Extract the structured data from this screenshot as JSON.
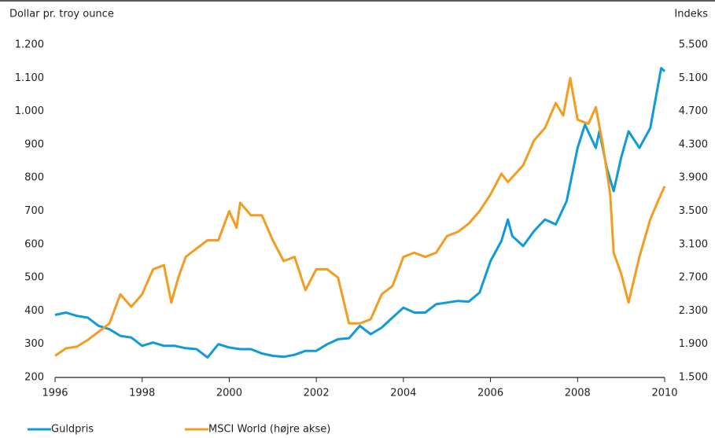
{
  "chart_data": {
    "type": "line",
    "ylabel": "Dollar pr. troy ounce",
    "y2label": "Indeks",
    "xlim": [
      1996,
      2010
    ],
    "xticks": [
      1996,
      1998,
      2000,
      2002,
      2004,
      2006,
      2008,
      2010
    ],
    "ylim": [
      200,
      1200
    ],
    "yticks": [
      200,
      300,
      400,
      500,
      600,
      700,
      800,
      900,
      {
        "value": 1000,
        "label": "1.000"
      },
      {
        "value": 1100,
        "label": "1.100"
      },
      {
        "value": 1200,
        "label": "1.200"
      }
    ],
    "y2lim": [
      1500,
      5500
    ],
    "y2ticks": [
      {
        "value": 1500,
        "label": "1.500"
      },
      {
        "value": 1900,
        "label": "1.900"
      },
      {
        "value": 2300,
        "label": "2.300"
      },
      {
        "value": 2700,
        "label": "2.700"
      },
      {
        "value": 3100,
        "label": "3.100"
      },
      {
        "value": 3500,
        "label": "3.500"
      },
      {
        "value": 3900,
        "label": "3.900"
      },
      {
        "value": 4300,
        "label": "4.300"
      },
      {
        "value": 4700,
        "label": "4.700"
      },
      {
        "value": 5100,
        "label": "5.100"
      },
      {
        "value": 5500,
        "label": "5.500"
      }
    ],
    "series": [
      {
        "name": "Guldpris",
        "color": "#0f9bd7",
        "x": [
          1996.0,
          1996.25,
          1996.5,
          1996.75,
          1997.0,
          1997.25,
          1997.5,
          1997.75,
          1998.0,
          1998.25,
          1998.5,
          1998.75,
          1999.0,
          1999.25,
          1999.5,
          1999.75,
          2000.0,
          2000.25,
          2000.5,
          2000.75,
          2001.0,
          2001.25,
          2001.5,
          2001.75,
          2002.0,
          2002.25,
          2002.5,
          2002.75,
          2003.0,
          2003.25,
          2003.5,
          2003.75,
          2004.0,
          2004.25,
          2004.5,
          2004.75,
          2005.0,
          2005.25,
          2005.5,
          2005.75,
          2006.0,
          2006.25,
          2006.4,
          2006.5,
          2006.75,
          2007.0,
          2007.25,
          2007.5,
          2007.75,
          2008.0,
          2008.17,
          2008.42,
          2008.5,
          2008.67,
          2008.83,
          2009.0,
          2009.17,
          2009.42,
          2009.67,
          2009.92,
          2010.0
        ],
        "values": [
          388,
          395,
          385,
          380,
          355,
          345,
          325,
          320,
          295,
          305,
          295,
          295,
          288,
          285,
          260,
          300,
          290,
          285,
          285,
          272,
          265,
          262,
          268,
          280,
          280,
          300,
          315,
          318,
          355,
          330,
          350,
          380,
          410,
          395,
          395,
          420,
          425,
          430,
          428,
          455,
          550,
          610,
          675,
          625,
          595,
          640,
          675,
          660,
          730,
          890,
          960,
          890,
          940,
          830,
          760,
          860,
          940,
          890,
          950,
          1130,
          1120
        ]
      },
      {
        "name": "MSCI World (højre akse)",
        "color": "#f39c1f",
        "axis": "y2",
        "x": [
          1996.0,
          1996.25,
          1996.5,
          1996.75,
          1997.0,
          1997.25,
          1997.5,
          1997.75,
          1998.0,
          1998.25,
          1998.5,
          1998.67,
          1998.83,
          1999.0,
          1999.25,
          1999.5,
          1999.75,
          2000.0,
          2000.17,
          2000.25,
          2000.5,
          2000.75,
          2001.0,
          2001.25,
          2001.5,
          2001.75,
          2002.0,
          2002.25,
          2002.5,
          2002.75,
          2003.0,
          2003.25,
          2003.5,
          2003.75,
          2004.0,
          2004.25,
          2004.5,
          2004.75,
          2005.0,
          2005.25,
          2005.5,
          2005.75,
          2006.0,
          2006.25,
          2006.4,
          2006.75,
          2007.0,
          2007.25,
          2007.5,
          2007.67,
          2007.83,
          2008.0,
          2008.25,
          2008.42,
          2008.58,
          2008.75,
          2008.83,
          2009.0,
          2009.17,
          2009.42,
          2009.67,
          2009.83,
          2010.0
        ],
        "values": [
          1760,
          1850,
          1870,
          1950,
          2050,
          2150,
          2500,
          2350,
          2500,
          2800,
          2850,
          2400,
          2700,
          2950,
          3050,
          3150,
          3150,
          3500,
          3300,
          3600,
          3450,
          3450,
          3150,
          2900,
          2950,
          2550,
          2800,
          2800,
          2700,
          2150,
          2150,
          2200,
          2500,
          2600,
          2950,
          3000,
          2950,
          3000,
          3200,
          3250,
          3350,
          3500,
          3700,
          3950,
          3850,
          4050,
          4350,
          4500,
          4800,
          4650,
          5100,
          4600,
          4550,
          4750,
          4300,
          3700,
          3000,
          2750,
          2400,
          2950,
          3400,
          3600,
          3800
        ]
      }
    ]
  }
}
